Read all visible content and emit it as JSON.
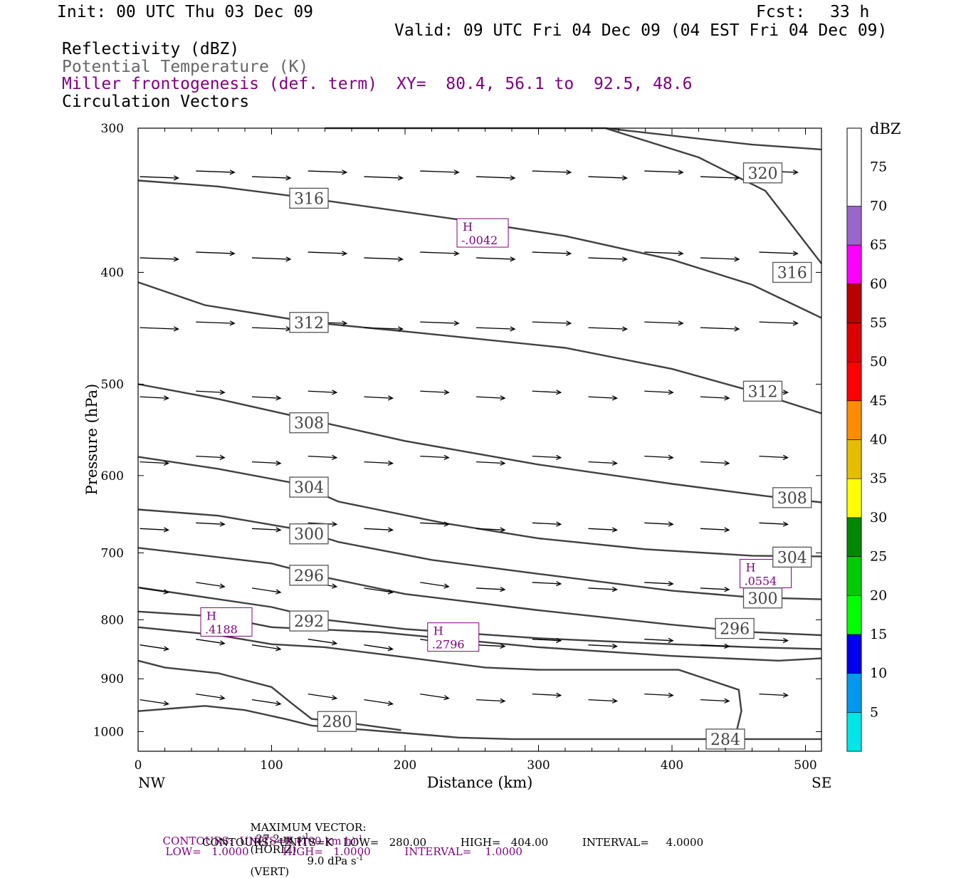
{
  "header": {
    "init": "Init: 00 UTC Thu 03 Dec 09",
    "fcst_label": "Fcst:",
    "fcst_value": "33 h",
    "valid": "Valid: 09 UTC Fri 04 Dec 09 (04 EST Fri 04 Dec 09)"
  },
  "fields": {
    "reflectivity": "Reflectivity (dBZ)",
    "theta": "Potential Temperature (K)",
    "frontogenesis": "Miller frontogenesis (def. term)",
    "xy": "XY=  80.4, 56.1 to  92.5, 48.6",
    "vectors": "Circulation Vectors"
  },
  "footer": {
    "max_vector_label": "MAXIMUM VECTOR:",
    "max_vector_horiz": "27.2 m s",
    "horiz_suffix": "(HORIZ)",
    "max_vector_vert": "9.0 dPa s",
    "vert_suffix": "(VERT)",
    "exp": "-1",
    "contours_fg": "CONTOURS:  UNITS=K (100 km h)",
    "contours_fg_stats": "LOW=   1.0000          HIGH=   1.0000          INTERVAL=    1.0000",
    "contours_theta": "CONTOURS:  UNITS=K   LOW=   280.00          HIGH=   404.00          INTERVAL=     4.0000"
  },
  "colors": {
    "theta_contour": "#404040",
    "frontogenesis": "#800080",
    "vector": "#000000"
  },
  "chart_data": {
    "type": "cross-section",
    "xlabel": "Distance (km)",
    "ylabel": "Pressure (hPa)",
    "xlim": [
      0,
      512
    ],
    "ylim": [
      1040,
      300
    ],
    "y_log_scale": true,
    "x_ticks": [
      0,
      100,
      200,
      300,
      400,
      500
    ],
    "y_ticks": [
      300,
      400,
      500,
      600,
      700,
      800,
      900,
      1000
    ],
    "x_end_labels": [
      "NW",
      "SE"
    ],
    "colorbar": {
      "unit": "dBZ",
      "levels": [
        {
          "label": "5",
          "color": "#00e5e5"
        },
        {
          "label": "10",
          "color": "#0099ee"
        },
        {
          "label": "15",
          "color": "#0000ee"
        },
        {
          "label": "20",
          "color": "#00ff00"
        },
        {
          "label": "25",
          "color": "#00cc00"
        },
        {
          "label": "30",
          "color": "#008800"
        },
        {
          "label": "35",
          "color": "#ffff00"
        },
        {
          "label": "40",
          "color": "#e5bd00"
        },
        {
          "label": "45",
          "color": "#ff8c00"
        },
        {
          "label": "50",
          "color": "#ff0000"
        },
        {
          "label": "55",
          "color": "#dd0000"
        },
        {
          "label": "60",
          "color": "#bb0000"
        },
        {
          "label": "65",
          "color": "#ff00ff"
        },
        {
          "label": "70",
          "color": "#9966cc"
        },
        {
          "label": "75",
          "color": ""
        }
      ]
    },
    "theta_contours": [
      {
        "label": "320",
        "points": [
          [
            140,
            300
          ],
          [
            250,
            300
          ],
          [
            350,
            300
          ],
          [
            460,
            310
          ],
          [
            512,
            313
          ]
        ]
      },
      {
        "label": "320",
        "points": [
          [
            350,
            300
          ],
          [
            420,
            318
          ],
          [
            470,
            340
          ],
          [
            512,
            393
          ]
        ]
      },
      {
        "label": "316",
        "points": [
          [
            0,
            333
          ],
          [
            60,
            337
          ],
          [
            120,
            344
          ],
          [
            240,
            360
          ],
          [
            320,
            372
          ],
          [
            400,
            390
          ],
          [
            460,
            410
          ],
          [
            512,
            438
          ]
        ]
      },
      {
        "label": "312",
        "points": [
          [
            0,
            408
          ],
          [
            50,
            427
          ],
          [
            130,
            442
          ],
          [
            200,
            450
          ],
          [
            320,
            465
          ],
          [
            400,
            485
          ],
          [
            460,
            507
          ],
          [
            512,
            530
          ]
        ]
      },
      {
        "label": "308",
        "points": [
          [
            0,
            500
          ],
          [
            60,
            515
          ],
          [
            130,
            537
          ],
          [
            200,
            560
          ],
          [
            300,
            587
          ],
          [
            400,
            610
          ],
          [
            470,
            625
          ],
          [
            512,
            633
          ]
        ]
      },
      {
        "label": "304",
        "points": [
          [
            0,
            578
          ],
          [
            60,
            592
          ],
          [
            120,
            610
          ],
          [
            150,
            632
          ],
          [
            230,
            660
          ],
          [
            300,
            680
          ],
          [
            380,
            695
          ],
          [
            460,
            704
          ],
          [
            512,
            705
          ]
        ]
      },
      {
        "label": "300",
        "points": [
          [
            0,
            642
          ],
          [
            60,
            650
          ],
          [
            120,
            668
          ],
          [
            150,
            685
          ],
          [
            220,
            710
          ],
          [
            300,
            730
          ],
          [
            400,
            755
          ],
          [
            460,
            765
          ],
          [
            512,
            768
          ]
        ]
      },
      {
        "label": "296",
        "points": [
          [
            0,
            693
          ],
          [
            100,
            715
          ],
          [
            140,
            735
          ],
          [
            200,
            760
          ],
          [
            300,
            785
          ],
          [
            400,
            808
          ],
          [
            460,
            820
          ],
          [
            512,
            825
          ]
        ]
      },
      {
        "label": "292",
        "points": [
          [
            0,
            750
          ],
          [
            100,
            780
          ],
          [
            140,
            800
          ],
          [
            200,
            815
          ],
          [
            300,
            830
          ],
          [
            400,
            840
          ],
          [
            460,
            845
          ],
          [
            512,
            848
          ]
        ]
      },
      {
        "label": "",
        "points": [
          [
            0,
            787
          ],
          [
            60,
            795
          ],
          [
            100,
            812
          ],
          [
            180,
            820
          ],
          [
            300,
            845
          ],
          [
            400,
            860
          ],
          [
            480,
            868
          ],
          [
            512,
            864
          ]
        ]
      },
      {
        "label": "",
        "points": [
          [
            0,
            812
          ],
          [
            60,
            825
          ],
          [
            100,
            840
          ],
          [
            140,
            845
          ],
          [
            200,
            862
          ],
          [
            260,
            880
          ],
          [
            300,
            884
          ],
          [
            405,
            884
          ],
          [
            450,
            920
          ],
          [
            452,
            960
          ],
          [
            447,
            1015
          ]
        ]
      },
      {
        "label": "",
        "points": [
          [
            0,
            868
          ],
          [
            20,
            880
          ],
          [
            60,
            890
          ],
          [
            100,
            915
          ],
          [
            115,
            945
          ],
          [
            130,
            975
          ],
          [
            150,
            980
          ],
          [
            197,
            997
          ]
        ]
      },
      {
        "label": "280",
        "points": [
          [
            0,
            960
          ],
          [
            50,
            950
          ],
          [
            80,
            958
          ],
          [
            110,
            975
          ],
          [
            130,
            988
          ],
          [
            200,
            1003
          ],
          [
            240,
            1012
          ],
          [
            280,
            1015
          ],
          [
            512,
            1015
          ]
        ]
      },
      {
        "label": "284",
        "points": []
      }
    ],
    "frontogenesis_labels": [
      {
        "type": "H",
        "value": "-.0042",
        "x": 240,
        "y": 375
      },
      {
        "type": "H",
        "value": ".0554",
        "x": 452,
        "y": 740
      },
      {
        "type": "H",
        "value": ".4188",
        "x": 48,
        "y": 815
      },
      {
        "type": "H",
        "value": ".2796",
        "x": 218,
        "y": 840
      }
    ]
  }
}
